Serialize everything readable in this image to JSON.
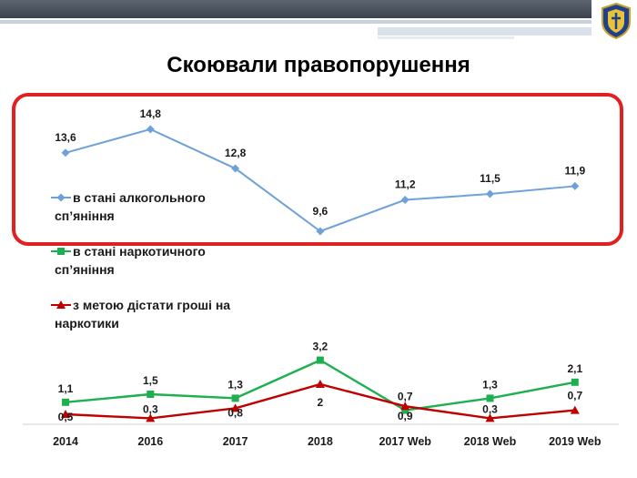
{
  "title": "Скоювали правопорушення",
  "colors": {
    "alcohol": "#6fa1d9",
    "drugs": "#1eb050",
    "money": "#c00000",
    "highlight": "#e32021"
  },
  "icons": {
    "crest": "police-crest-icon"
  },
  "chart_data": {
    "type": "line",
    "categories": [
      "2014",
      "2016",
      "2017",
      "2018",
      "2017 Web",
      "2018 Web",
      "2019 Web"
    ],
    "series": [
      {
        "name": "в стані алкогольного сп’яніння",
        "legend_lines": [
          "в стані алкогольного",
          "сп’яніння"
        ],
        "marker": "diamond",
        "values": [
          13.6,
          14.8,
          12.8,
          9.6,
          11.2,
          11.5,
          11.9
        ],
        "labels": [
          "13,6",
          "14,8",
          "12,8",
          "9,6",
          "11,2",
          "11,5",
          "11,9"
        ]
      },
      {
        "name": "в стані наркотичного сп’яніння",
        "legend_lines": [
          "в стані наркотичного",
          "сп’яніння"
        ],
        "marker": "square",
        "values": [
          1.1,
          1.5,
          1.3,
          3.2,
          0.7,
          1.3,
          2.1
        ],
        "labels": [
          "1,1",
          "1,5",
          "1,3",
          "3,2",
          "0,7",
          "1,3",
          "2,1"
        ]
      },
      {
        "name": "з метою дістати гроші на наркотики",
        "legend_lines": [
          "з метою дістати гроші на",
          "наркотики"
        ],
        "marker": "triangle",
        "values": [
          0.5,
          0.3,
          0.8,
          2,
          0.9,
          0.3,
          0.7
        ],
        "labels": [
          "0,5",
          "0,3",
          "0,8",
          "2",
          "0,9",
          "0,3",
          "0,7"
        ]
      }
    ]
  }
}
